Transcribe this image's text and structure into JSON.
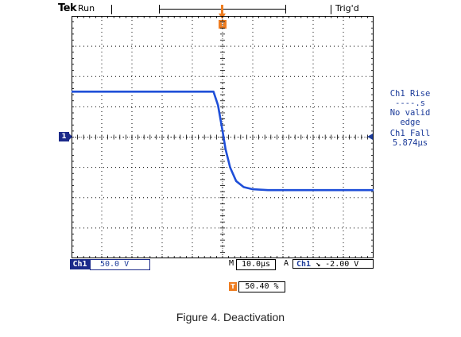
{
  "topbar": {
    "brand": "Tek",
    "acq_status": "Run",
    "trigger_state": "Trig'd"
  },
  "markers": {
    "trigger_flag": "T",
    "ch1_reference": "1"
  },
  "measurements": {
    "rise_label": "Ch1 Rise",
    "rise_value": "----.s",
    "rise_note_1": "No valid",
    "rise_note_2": "edge",
    "fall_label": "Ch1 Fall",
    "fall_value": "5.874µs"
  },
  "statusbar": {
    "channel": "Ch1",
    "scale": "50.0 V",
    "time_prefix": "M",
    "timebase": "10.0µs",
    "trigger_prefix": "A",
    "trigger_source": "Ch1",
    "trigger_slope": "↘",
    "trigger_level": "-2.00 V",
    "trigger_position": "50.40 %"
  },
  "caption": "Figure 4. Deactivation",
  "colors": {
    "trace": "#1f4fd8",
    "label_blue": "#1d3c9a",
    "marker_navy": "#1b2a8a",
    "trigger_orange": "#ee7d21",
    "grid": "#000000"
  },
  "chart_data": {
    "type": "line",
    "grid": true,
    "x_divisions": 10,
    "y_divisions": 8,
    "x_unit": "µs/div",
    "y_unit": "V/div",
    "series": [
      {
        "name": "Ch1",
        "x_div": [
          0,
          4.7,
          4.85,
          5.0,
          5.1,
          5.25,
          5.45,
          5.7,
          6.0,
          6.5,
          7.5,
          10
        ],
        "y_div": [
          1.5,
          1.5,
          1.05,
          0.2,
          -0.4,
          -1.0,
          -1.45,
          -1.65,
          -1.72,
          -1.75,
          -1.75,
          -1.75
        ]
      }
    ]
  }
}
